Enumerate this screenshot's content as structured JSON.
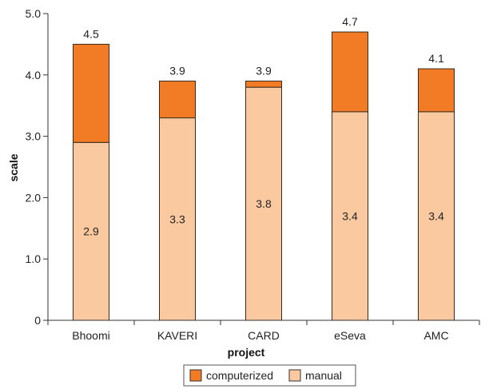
{
  "chart_data": {
    "type": "bar",
    "stacked": true,
    "title": "",
    "xlabel": "project",
    "ylabel": "scale",
    "ylim": [
      0,
      5
    ],
    "yticks": [
      "0",
      "1.0",
      "2.0",
      "3.0",
      "4.0",
      "5.0"
    ],
    "ytick_values": [
      0,
      1,
      2,
      3,
      4,
      5
    ],
    "categories": [
      "Bhoomi",
      "KAVERI",
      "CARD",
      "eSeva",
      "AMC"
    ],
    "series": [
      {
        "name": "manual",
        "color": "#fbc9a0",
        "values": [
          2.9,
          3.3,
          3.8,
          3.4,
          3.4
        ],
        "labels": [
          "2.9",
          "3.3",
          "3.8",
          "3.4",
          "3.4"
        ]
      },
      {
        "name": "computerized",
        "color": "#f27b25",
        "totals": [
          4.5,
          3.9,
          3.9,
          4.7,
          4.1
        ],
        "total_labels": [
          "4.5",
          "3.9",
          "3.9",
          "4.7",
          "4.1"
        ]
      }
    ],
    "legend": {
      "placement": "bottom",
      "entries": [
        "computerized",
        "manual"
      ]
    },
    "grid": false
  }
}
